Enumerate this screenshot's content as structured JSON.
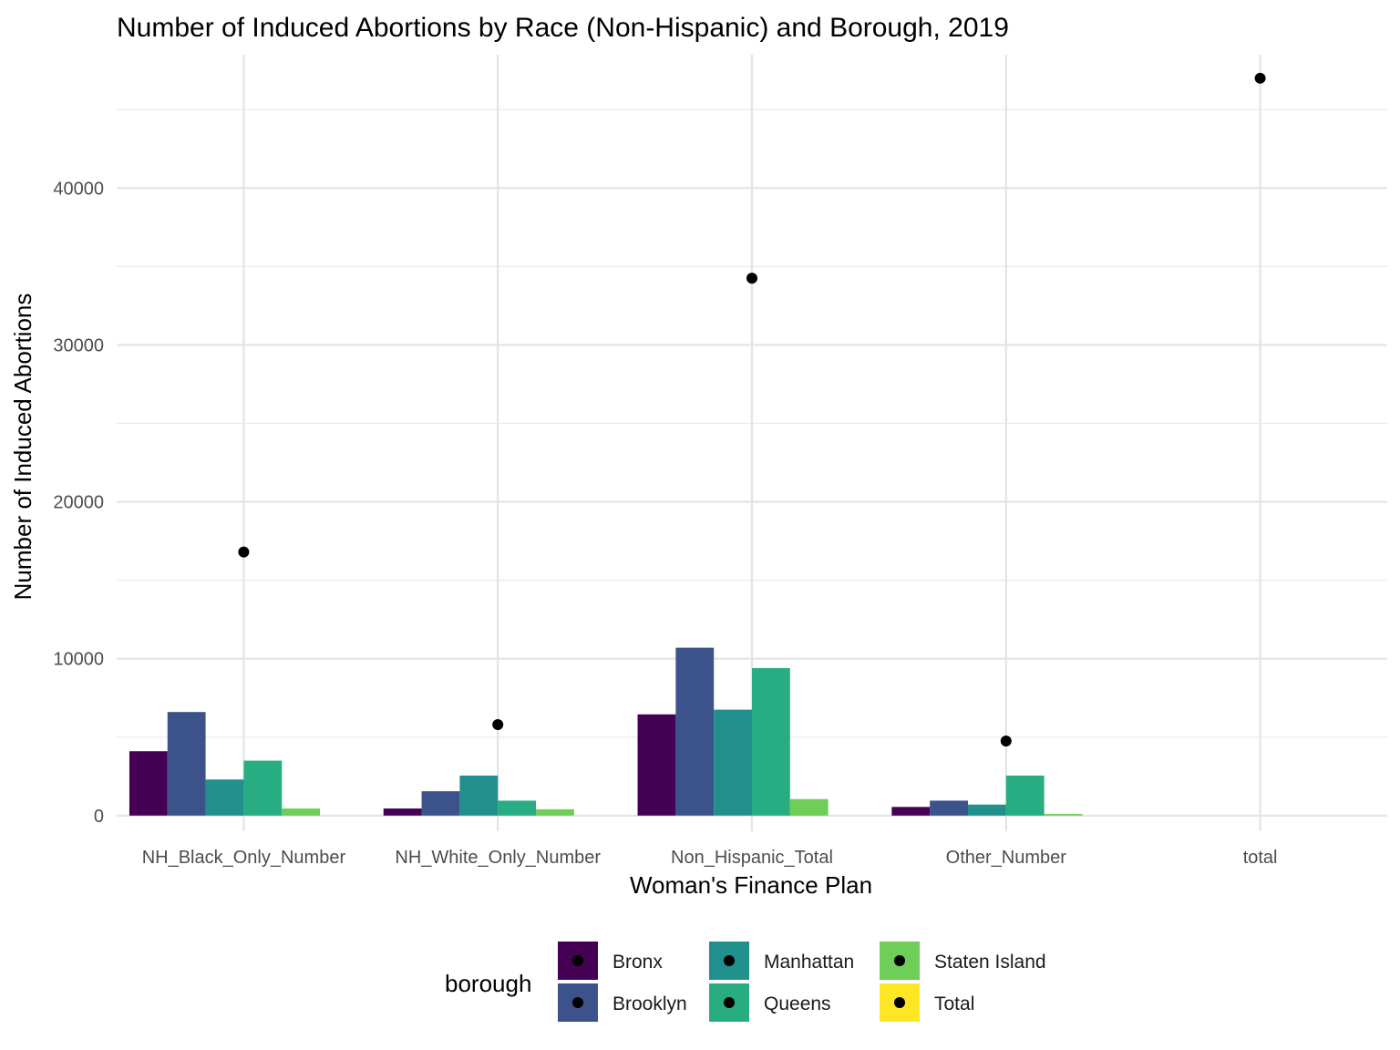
{
  "chart_data": {
    "type": "bar",
    "title": "Number of Induced Abortions by Race (Non-Hispanic) and Borough, 2019",
    "xlabel": "Woman's Finance Plan",
    "ylabel": "Number of Induced Abortions",
    "categories": [
      "NH_Black_Only_Number",
      "NH_White_Only_Number",
      "Non_Hispanic_Total",
      "Other_Number",
      "total"
    ],
    "ylim": [
      -1000,
      48500
    ],
    "yticks": [
      0,
      10000,
      20000,
      30000,
      40000
    ],
    "ytick_labels": [
      "0",
      "10000",
      "20000",
      "30000",
      "40000"
    ],
    "grid": true,
    "legend_position": "bottom",
    "legend_title": "borough",
    "series": [
      {
        "name": "Bronx",
        "color": "#440154",
        "values": [
          4100,
          450,
          6450,
          550,
          0
        ]
      },
      {
        "name": "Brooklyn",
        "color": "#3b528b",
        "values": [
          6600,
          1550,
          10700,
          950,
          0
        ]
      },
      {
        "name": "Manhattan",
        "color": "#21908c",
        "values": [
          2300,
          2550,
          6750,
          700,
          0
        ]
      },
      {
        "name": "Queens",
        "color": "#27ad81",
        "values": [
          3500,
          950,
          9400,
          2550,
          0
        ]
      },
      {
        "name": "Staten Island",
        "color": "#6ece58",
        "values": [
          450,
          400,
          1050,
          100,
          0
        ]
      },
      {
        "name": "Total",
        "color": "#fde725",
        "values": [
          0,
          0,
          0,
          0,
          0
        ]
      }
    ],
    "points": {
      "color": "#000000",
      "values": [
        16800,
        5800,
        34250,
        4750,
        47000
      ]
    }
  }
}
